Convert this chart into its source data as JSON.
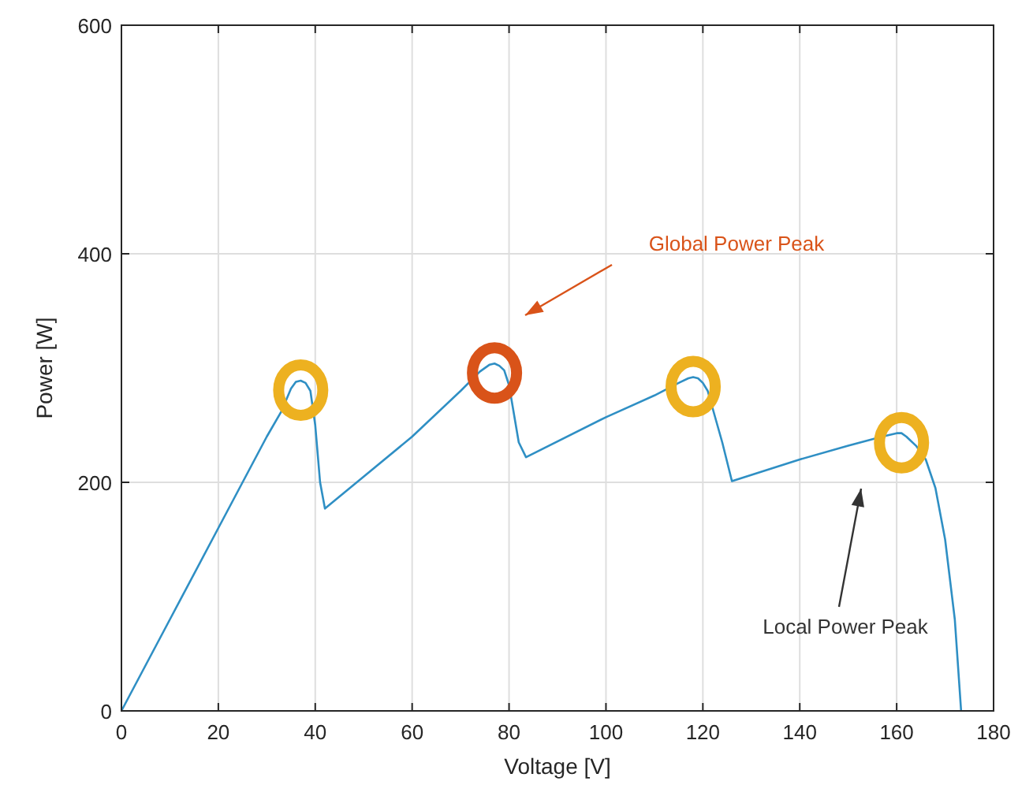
{
  "chart_data": {
    "type": "line",
    "xlabel": "Voltage [V]",
    "ylabel": "Power [W]",
    "xlim": [
      0,
      180
    ],
    "xticks": [
      0,
      20,
      40,
      60,
      80,
      100,
      120,
      140,
      160,
      180
    ],
    "ylim": [
      0,
      600
    ],
    "yticks": [
      0,
      200,
      400,
      600
    ],
    "grid": true,
    "series": [
      {
        "color": "#2f8fc4",
        "x": [
          0,
          10,
          20,
          30,
          33,
          35,
          36,
          37,
          38,
          39,
          40,
          41,
          42,
          50,
          60,
          70,
          74,
          76,
          77,
          78,
          79,
          80,
          81,
          82,
          83.5,
          100,
          110,
          115,
          117,
          118,
          119,
          120,
          121,
          122,
          124,
          126,
          140,
          150,
          157,
          160,
          161,
          162,
          164,
          166,
          168,
          170,
          172,
          173.3
        ],
        "values": [
          0,
          80,
          160,
          240,
          262,
          282,
          288,
          289,
          287,
          280,
          250,
          200,
          177,
          205,
          240,
          280,
          297,
          303,
          304,
          302,
          298,
          285,
          260,
          235,
          222,
          257,
          276,
          287,
          291,
          292,
          291,
          287,
          280,
          265,
          235,
          201,
          220,
          232,
          240,
          243,
          243,
          240,
          232,
          220,
          195,
          150,
          80,
          0
        ]
      }
    ],
    "annotations": [
      "Global Power Peak",
      "Local Power Peak"
    ]
  }
}
